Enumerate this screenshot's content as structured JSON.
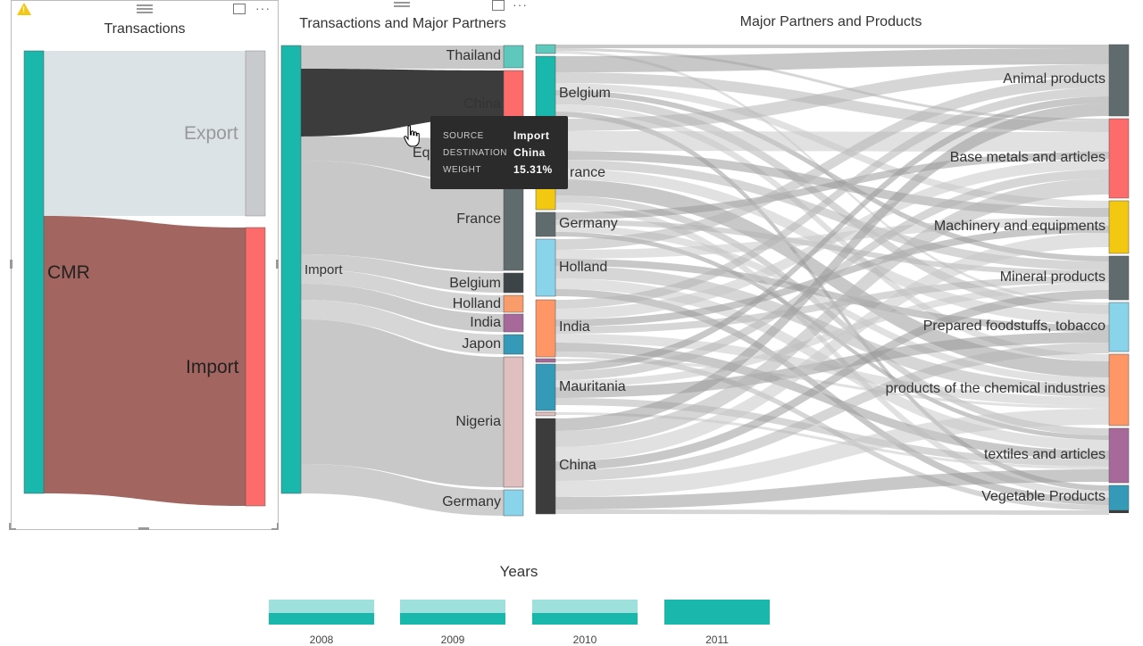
{
  "colors": {
    "teal": "#1ab7ad",
    "red": "#fd6b6a",
    "dark": "#3c3c3c",
    "brown": "#a2655f",
    "light_blue_gray": "#dbe3e7",
    "flow_gray": "#c8c8c8"
  },
  "transactions": {
    "title": "Transactions",
    "source": "CMR",
    "export_label": "Export",
    "import_label": "Import",
    "warning_icon": "warning-icon"
  },
  "partners": {
    "title": "Transactions and Major Partners",
    "source": "Import",
    "destinations": [
      "Thailand",
      "China",
      "Equator",
      "France",
      "Belgium",
      "Holland",
      "India",
      "Japon",
      "Nigeria",
      "Germany"
    ],
    "equator_visible": "Eq"
  },
  "tooltip": {
    "source_key": "SOURCE",
    "source_value": "Import",
    "destination_key": "DESTINATION",
    "destination_value": "China",
    "weight_key": "WEIGHT",
    "weight_value": "15.31%"
  },
  "products": {
    "title": "Major Partners and Products",
    "partners": [
      "Belgium",
      "France",
      "Germany",
      "Holland",
      "India",
      "Mauritania",
      "China"
    ],
    "france_visible": "rance",
    "products": [
      "Animal products",
      "Base metals and articles",
      "Machinery and equipments",
      "Mineral products",
      "Prepared foodstuffs, tobacco",
      "products of the chemical industries",
      "textiles and articles",
      "Vegetable Products"
    ]
  },
  "years": {
    "title": "Years",
    "items": [
      {
        "label": "2008",
        "selected_fraction": 0.45
      },
      {
        "label": "2009",
        "selected_fraction": 0.45
      },
      {
        "label": "2010",
        "selected_fraction": 0.45
      },
      {
        "label": "2011",
        "selected_fraction": 1.0
      }
    ]
  }
}
